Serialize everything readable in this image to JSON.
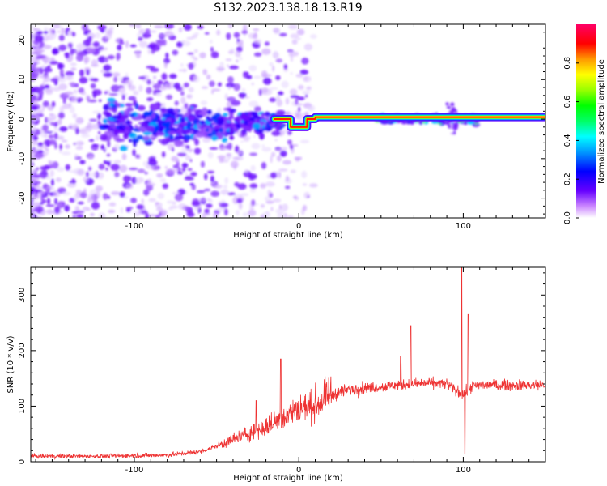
{
  "title": "S132.2023.138.18.13.R19",
  "chart_data": [
    {
      "type": "heatmap",
      "xlabel": "Height of straight line (km)",
      "ylabel": "Frequency (Hz)",
      "xlim": [
        -163,
        150
      ],
      "ylim": [
        -25,
        24
      ],
      "xticks": [
        -100,
        0,
        100
      ],
      "yticks": [
        -20,
        -10,
        0,
        10,
        20
      ],
      "colorbar": {
        "label": "Normalized spectral amplitude",
        "range": [
          0,
          1
        ],
        "ticks": [
          0.0,
          0.2,
          0.4,
          0.6,
          0.8
        ]
      },
      "ridge": {
        "frequency_hz": 0,
        "x_start": -15,
        "x_end": 150,
        "segments": [
          {
            "x": [
              -15,
              -5
            ],
            "f": 0
          },
          {
            "x": [
              -5,
              5
            ],
            "f": -2
          },
          {
            "x": [
              5,
              10
            ],
            "f": 0
          },
          {
            "x": [
              10,
              150
            ],
            "f": 0.5
          }
        ]
      },
      "noise_region": {
        "x": [
          -163,
          -40
        ],
        "f": [
          -25,
          24
        ]
      },
      "colors": [
        "#ffffff",
        "#e6ccff",
        "#9966ff",
        "#6600ff",
        "#0000ff",
        "#00ffff",
        "#00ff00",
        "#ffff00",
        "#ff0000",
        "#ff0066"
      ]
    },
    {
      "type": "line",
      "xlabel": "Height of straight line (km)",
      "ylabel": "SNR (10 * v/v)",
      "xlim": [
        -163,
        150
      ],
      "ylim": [
        0,
        350
      ],
      "xticks": [
        -100,
        0,
        100
      ],
      "yticks": [
        0,
        100,
        200,
        300
      ],
      "series": [
        {
          "color": "#ee3333",
          "trend": {
            "x": [
              -163,
              -120,
              -80,
              -60,
              -50,
              -40,
              -30,
              -20,
              -10,
              0,
              10,
              20,
              30,
              40,
              50,
              60,
              70,
              80,
              90,
              95,
              100,
              105,
              110,
              120,
              130,
              140,
              150
            ],
            "y": [
              10,
              10,
              12,
              18,
              28,
              40,
              52,
              62,
              80,
              95,
              102,
              120,
              130,
              133,
              135,
              138,
              140,
              142,
              140,
              130,
              120,
              135,
              138,
              138,
              138,
              138,
              138
            ]
          },
          "spikes": [
            {
              "x": -11,
              "y": 185
            },
            {
              "x": -26,
              "y": 110
            },
            {
              "x": 62,
              "y": 190
            },
            {
              "x": 68,
              "y": 245
            },
            {
              "x": 99,
              "y": 350
            },
            {
              "x": 101,
              "y": 15
            },
            {
              "x": 103,
              "y": 265
            }
          ]
        }
      ]
    }
  ]
}
